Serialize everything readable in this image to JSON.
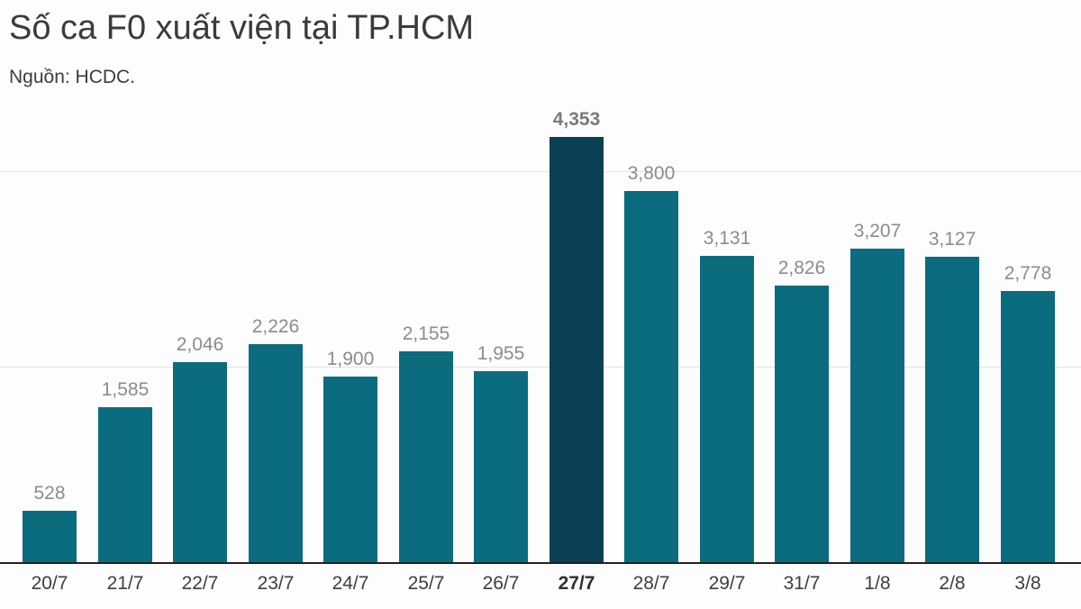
{
  "header": {
    "title": "Số ca F0 xuất viện tại TP.HCM",
    "source": "Nguồn: HCDC."
  },
  "chart_data": {
    "type": "bar",
    "title": "Số ca F0 xuất viện tại TP.HCM",
    "subtitle": "Nguồn: HCDC.",
    "categories": [
      "20/7",
      "21/7",
      "22/7",
      "23/7",
      "24/7",
      "25/7",
      "26/7",
      "27/7",
      "28/7",
      "29/7",
      "31/7",
      "1/8",
      "2/8",
      "3/8"
    ],
    "values": [
      528,
      1585,
      2046,
      2226,
      1900,
      2155,
      1955,
      4353,
      3800,
      3131,
      2826,
      3207,
      3127,
      2778
    ],
    "highlight_index": 7,
    "xlabel": "",
    "ylabel": "",
    "ylim": [
      0,
      4700
    ],
    "gridline_values": [
      2000,
      4000
    ],
    "legend": "none",
    "grid": "horizontal-only",
    "colors": {
      "bar": "#0b6c7f",
      "bar_highlight": "#0c4054",
      "gridline": "#e3e3e3",
      "axis_line": "#222222",
      "value_label": "#8c8c8c",
      "value_label_highlight": "#7a7a7a",
      "tick_label": "#3e3e3e",
      "title": "#3b3b3b"
    }
  }
}
